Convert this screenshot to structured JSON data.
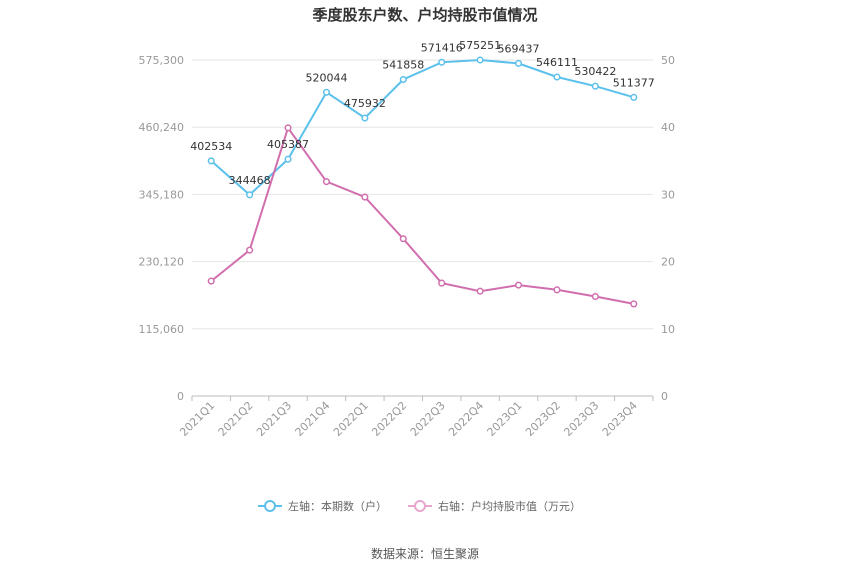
{
  "chart_data": {
    "type": "line",
    "title": "季度股东户数、户均持股市值情况",
    "categories": [
      "2021Q1",
      "2021Q2",
      "2021Q3",
      "2021Q4",
      "2022Q1",
      "2022Q2",
      "2022Q3",
      "2022Q4",
      "2023Q1",
      "2023Q2",
      "2023Q3",
      "2023Q4"
    ],
    "left_axis": {
      "ylim": [
        0,
        575300
      ],
      "ticks": [
        "0",
        "115,060",
        "230,120",
        "345,180",
        "460,240",
        "575,300"
      ]
    },
    "right_axis": {
      "ylim": [
        0,
        50
      ],
      "ticks": [
        "0",
        "10",
        "20",
        "30",
        "40",
        "50"
      ]
    },
    "series": [
      {
        "name": "左轴：本期数（户）",
        "axis": "left",
        "color": "#5bc0eb",
        "values": [
          402534,
          344468,
          405387,
          520044,
          475932,
          541858,
          571416,
          575251,
          569437,
          546111,
          530422,
          511377
        ],
        "labels": [
          "402534",
          "344468",
          "405387",
          "520044",
          "475932",
          "541858",
          "571416",
          "575251",
          "569437",
          "546111",
          "530422",
          "511377"
        ]
      },
      {
        "name": "右轴：户均持股市值（万元）",
        "axis": "right",
        "color": "#d16ead",
        "values": [
          17.1,
          21.7,
          39.9,
          31.9,
          29.6,
          23.4,
          16.8,
          15.6,
          16.5,
          15.8,
          14.8,
          13.7
        ]
      }
    ],
    "legend_position": "bottom",
    "grid": true
  },
  "footer": {
    "source": "数据来源：恒生聚源"
  }
}
